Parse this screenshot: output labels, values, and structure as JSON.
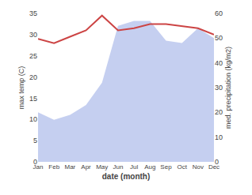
{
  "chart_data": {
    "type": "line",
    "xlabel": "date (month)",
    "ylabel": "max temp (C)",
    "y2label": "med. precipitation (kg/m2)",
    "categories": [
      "Jan",
      "Feb",
      "Mar",
      "Apr",
      "May",
      "Jun",
      "Jul",
      "Aug",
      "Sep",
      "Oct",
      "Nov",
      "Dec"
    ],
    "series": [
      {
        "type": "area",
        "color": "#c5cff0",
        "axis": "y2",
        "values": [
          20,
          17,
          19,
          23,
          32,
          55,
          57,
          57,
          49,
          48,
          54,
          50
        ]
      },
      {
        "type": "line",
        "color": "#cc4444",
        "values": [
          29.0,
          28.0,
          29.5,
          31.0,
          34.5,
          31.0,
          31.5,
          32.5,
          32.5,
          32.0,
          31.5,
          30.0
        ]
      }
    ],
    "ylim": [
      0,
      35
    ],
    "yticks": [
      0,
      5,
      10,
      15,
      20,
      25,
      30,
      35
    ],
    "y2lim": [
      0,
      60
    ],
    "y2ticks": [
      0,
      10,
      20,
      30,
      40,
      50,
      60
    ],
    "grid": false
  }
}
